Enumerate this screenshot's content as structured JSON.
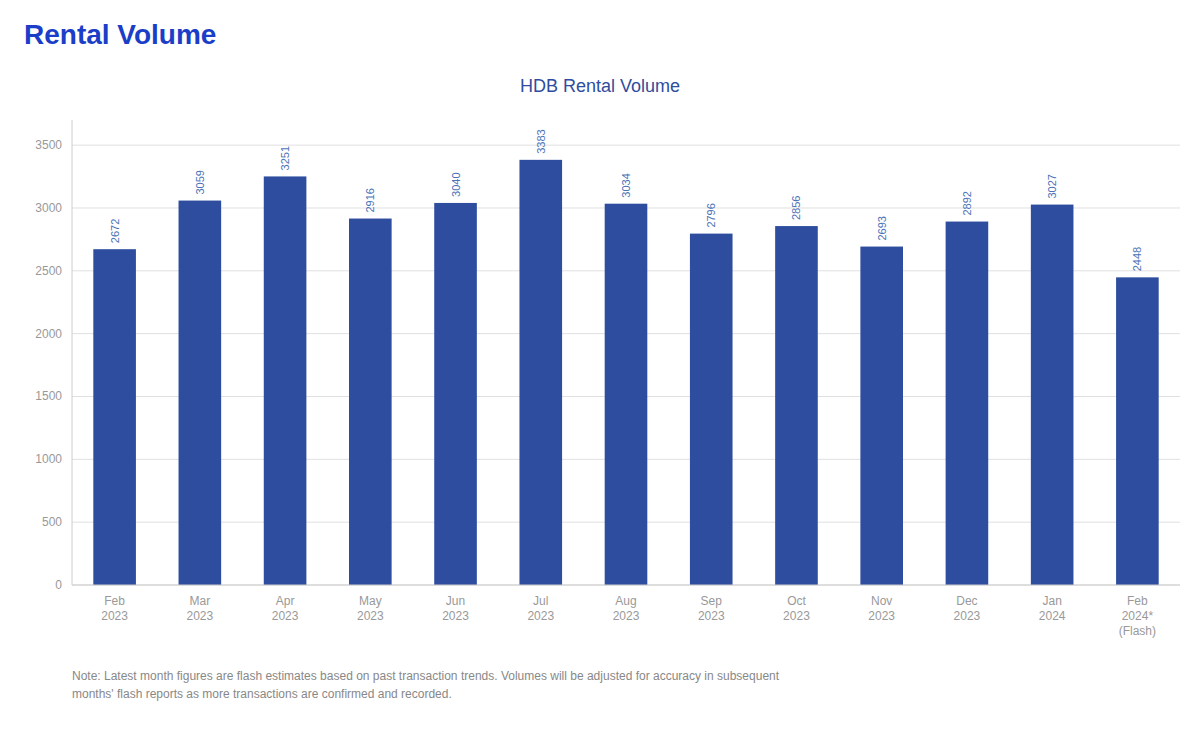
{
  "chart_data": {
    "type": "bar",
    "title": "Rental Volume",
    "subtitle": "HDB Rental Volume",
    "annotations": [
      "Note: Latest month figures are flash estimates based on past transaction trends. Volumes will be adjusted for accuracy in subsequent\nmonths' flash reports as more transactions are confirmed and recorded."
    ],
    "categories": [
      "Feb\n2023",
      "Mar\n2023",
      "Apr\n2023",
      "May\n2023",
      "Jun\n2023",
      "Jul\n2023",
      "Aug\n2023",
      "Sep\n2023",
      "Oct\n2023",
      "Nov\n2023",
      "Dec\n2023",
      "Jan\n2024",
      "Feb\n2024*\n(Flash)"
    ],
    "values": [
      2672,
      3059,
      3251,
      2916,
      3040,
      3383,
      3034,
      2796,
      2856,
      2693,
      2892,
      3027,
      2448
    ],
    "color": "#2e4d9e",
    "ylim": [
      0,
      3700
    ],
    "yticks": [
      0,
      500,
      1000,
      1500,
      2000,
      2500,
      3000,
      3500
    ],
    "grid": true,
    "data_labels": true
  }
}
